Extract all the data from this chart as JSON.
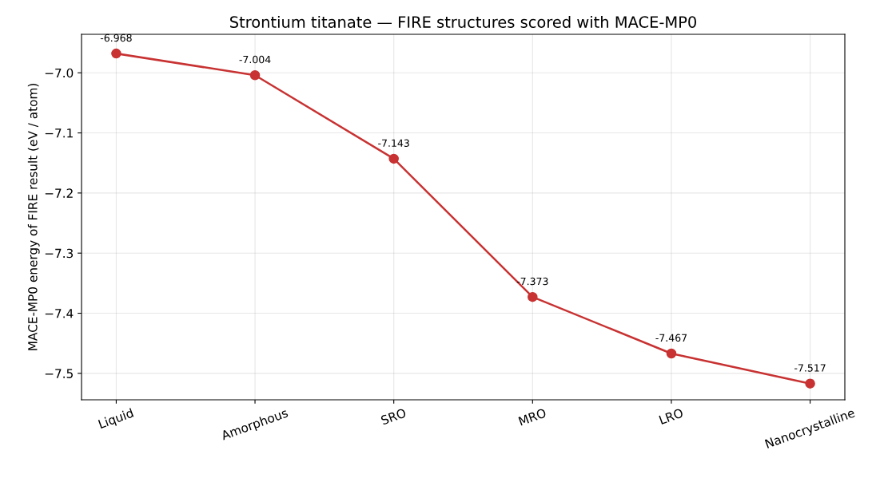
{
  "chart_data": {
    "type": "line",
    "title": "Strontium titanate — FIRE structures scored with MACE-MP0",
    "ylabel": "MACE-MP0 energy of FIRE result (eV / atom)",
    "categories": [
      "Liquid",
      "Amorphous",
      "SRO",
      "MRO",
      "LRO",
      "Nanocrystalline"
    ],
    "series": [
      {
        "color": "#c83232",
        "values": [
          -6.968,
          -7.004,
          -7.143,
          -7.373,
          -7.467,
          -7.517
        ]
      }
    ],
    "ylim": [
      -7.544,
      -6.936
    ],
    "yticks": [
      {
        "value": -7.5,
        "label": "−7.5"
      },
      {
        "value": -7.4,
        "label": "−7.4"
      },
      {
        "value": -7.3,
        "label": "−7.3"
      },
      {
        "value": -7.2,
        "label": "−7.2"
      },
      {
        "value": -7.1,
        "label": "−7.1"
      },
      {
        "value": -7.0,
        "label": "−7.0"
      }
    ],
    "grid": true,
    "marker": "circle",
    "line_style": "solid",
    "data_labels": true
  }
}
